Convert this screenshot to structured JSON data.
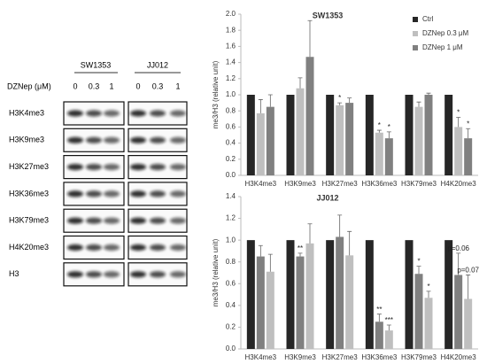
{
  "blot": {
    "cell_lines": [
      "SW1353",
      "JJ012"
    ],
    "treatment_label": "DZNep (μM)",
    "doses": [
      "0",
      "0.3",
      "1"
    ],
    "rows": [
      "H3K4me3",
      "H3K9me3",
      "H3K27me3",
      "H3K36me3",
      "H3K79me3",
      "H4K20me3",
      "H3"
    ]
  },
  "chart_data": [
    {
      "type": "bar",
      "title": "SW1353",
      "y_label": "me3/H3 (relative unit)",
      "categories": [
        "H3K4me3",
        "H3K9me3",
        "H3K27me3",
        "H3K36me3",
        "H3K79me3",
        "H4K20me3"
      ],
      "series": [
        {
          "name": "Ctrl",
          "color": "#262626",
          "values": [
            1,
            1,
            1,
            1,
            1,
            1
          ]
        },
        {
          "name": "DZNep 0.3 μM",
          "color": "#bfbfbf",
          "values": [
            0.77,
            1.08,
            0.87,
            0.53,
            0.85,
            0.6
          ],
          "errors": [
            0.17,
            0.13,
            0.03,
            0.03,
            0.06,
            0.12
          ],
          "annotations": [
            null,
            null,
            "*",
            "*",
            null,
            "*"
          ]
        },
        {
          "name": "DZNep 1 μM",
          "color": "#808080",
          "values": [
            0.85,
            1.47,
            0.9,
            0.46,
            1.0,
            0.46
          ],
          "errors": [
            0.15,
            0.45,
            0.06,
            0.08,
            0.02,
            0.12
          ],
          "annotations": [
            null,
            null,
            null,
            "*",
            null,
            "*"
          ]
        }
      ],
      "ylim": [
        0,
        2
      ],
      "yticks": [
        {
          "value": 0,
          "label": "0.0"
        },
        0.2,
        0.4,
        0.6,
        0.8,
        {
          "value": 1,
          "label": "1.0"
        },
        1.2,
        1.4,
        1.6,
        1.8,
        {
          "value": 2,
          "label": "2.0"
        }
      ],
      "legend": "upper-right"
    },
    {
      "type": "bar",
      "title": "JJ012",
      "y_label": "me3/H3 (relative unit)",
      "categories": [
        "H3K4me3",
        "H3K9me3",
        "H3K27me3",
        "H3K36me3",
        "H3K79me3",
        "H4K20me3"
      ],
      "series": [
        {
          "name": "Ctrl",
          "color": "#262626",
          "values": [
            1,
            1,
            1,
            1,
            1,
            1
          ]
        },
        {
          "name": "DZNep 0.3 μM",
          "color": "#808080",
          "values": [
            0.85,
            0.85,
            1.03,
            0.25,
            0.69,
            0.68
          ],
          "errors": [
            0.1,
            0.03,
            0.2,
            0.07,
            0.07,
            0.2
          ],
          "annotations": [
            null,
            "**",
            null,
            "**",
            "*",
            "p=0.06"
          ]
        },
        {
          "name": "DZNep 1 μM",
          "color": "#bfbfbf",
          "values": [
            0.71,
            0.97,
            0.86,
            0.17,
            0.47,
            0.46
          ],
          "errors": [
            0.16,
            0.18,
            0.22,
            0.05,
            0.06,
            0.22
          ],
          "annotations": [
            null,
            null,
            null,
            "***",
            "*",
            "p=0.07"
          ]
        }
      ],
      "ylim": [
        0,
        1.4
      ],
      "yticks": [
        {
          "value": 0,
          "label": "0.0"
        },
        0.2,
        0.4,
        0.6,
        0.8,
        {
          "value": 1,
          "label": "1.0"
        },
        1.2,
        1.4
      ]
    }
  ]
}
